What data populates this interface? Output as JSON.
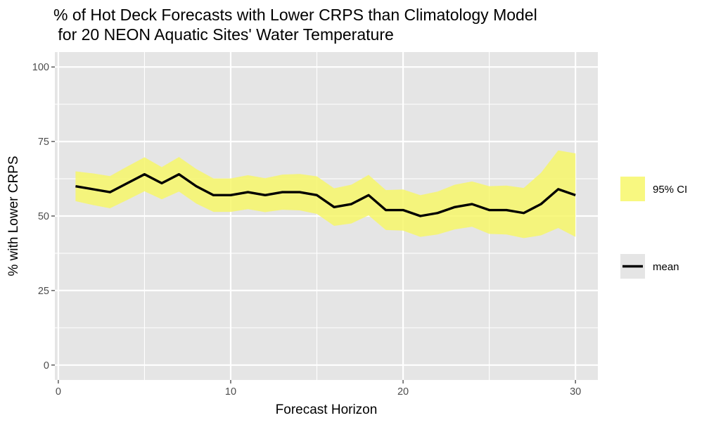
{
  "chart_data": {
    "type": "line",
    "title_line1": "% of Hot Deck Forecasts with Lower CRPS than Climatology Model",
    "title_line2": " for 20 NEON Aquatic Sites' Water Temperature",
    "xlabel": "Forecast Horizon",
    "ylabel": "% with Lower CRPS",
    "xlim": [
      -0.2,
      31.3
    ],
    "ylim": [
      -5,
      105
    ],
    "x_ticks": [
      0,
      10,
      20,
      30
    ],
    "x_tick_labels": [
      "0",
      "10",
      "20",
      "30"
    ],
    "y_ticks": [
      0,
      25,
      50,
      75,
      100
    ],
    "y_tick_labels": [
      "0",
      "25",
      "50",
      "75",
      "100"
    ],
    "grid": true,
    "legend_position": "right",
    "legend": [
      {
        "key": "ribbon",
        "label": "95% CI"
      },
      {
        "key": "line",
        "label": "mean"
      }
    ],
    "x": [
      1,
      2,
      3,
      4,
      5,
      6,
      7,
      8,
      9,
      10,
      11,
      12,
      13,
      14,
      15,
      16,
      17,
      18,
      19,
      20,
      21,
      22,
      23,
      24,
      25,
      26,
      27,
      28,
      29,
      30
    ],
    "series": [
      {
        "role": "mean",
        "values": [
          60,
          59,
          58,
          61,
          64,
          61,
          64,
          60,
          57,
          57,
          58,
          57,
          58,
          58,
          57,
          53,
          54,
          57,
          52,
          52,
          50,
          51,
          53,
          54,
          52,
          52,
          51,
          54,
          59,
          57
        ]
      },
      {
        "role": "upper",
        "values": [
          65,
          64.3,
          63.4,
          66.6,
          69.7,
          66.4,
          69.8,
          65.8,
          62.6,
          62.6,
          63.7,
          62.7,
          63.9,
          64.1,
          63.3,
          59.3,
          60.5,
          63.8,
          58.7,
          58.9,
          57,
          58.2,
          60.5,
          61.6,
          60,
          60.2,
          59.4,
          64.5,
          72,
          71
        ]
      },
      {
        "role": "lower",
        "values": [
          55,
          53.7,
          52.6,
          55.4,
          58.3,
          55.6,
          58.2,
          54.2,
          51.4,
          51.4,
          52.3,
          51.3,
          52.1,
          51.9,
          50.7,
          46.7,
          47.5,
          50.2,
          45.3,
          45.1,
          43,
          43.8,
          45.5,
          46.4,
          44,
          43.8,
          42.6,
          43.5,
          46,
          43
        ]
      }
    ],
    "colors": {
      "panel_bg": "#e5e5e5",
      "grid_major": "#ffffff",
      "ribbon_fill": "#f7f76a",
      "line": "#000000",
      "tick": "#333333"
    }
  }
}
